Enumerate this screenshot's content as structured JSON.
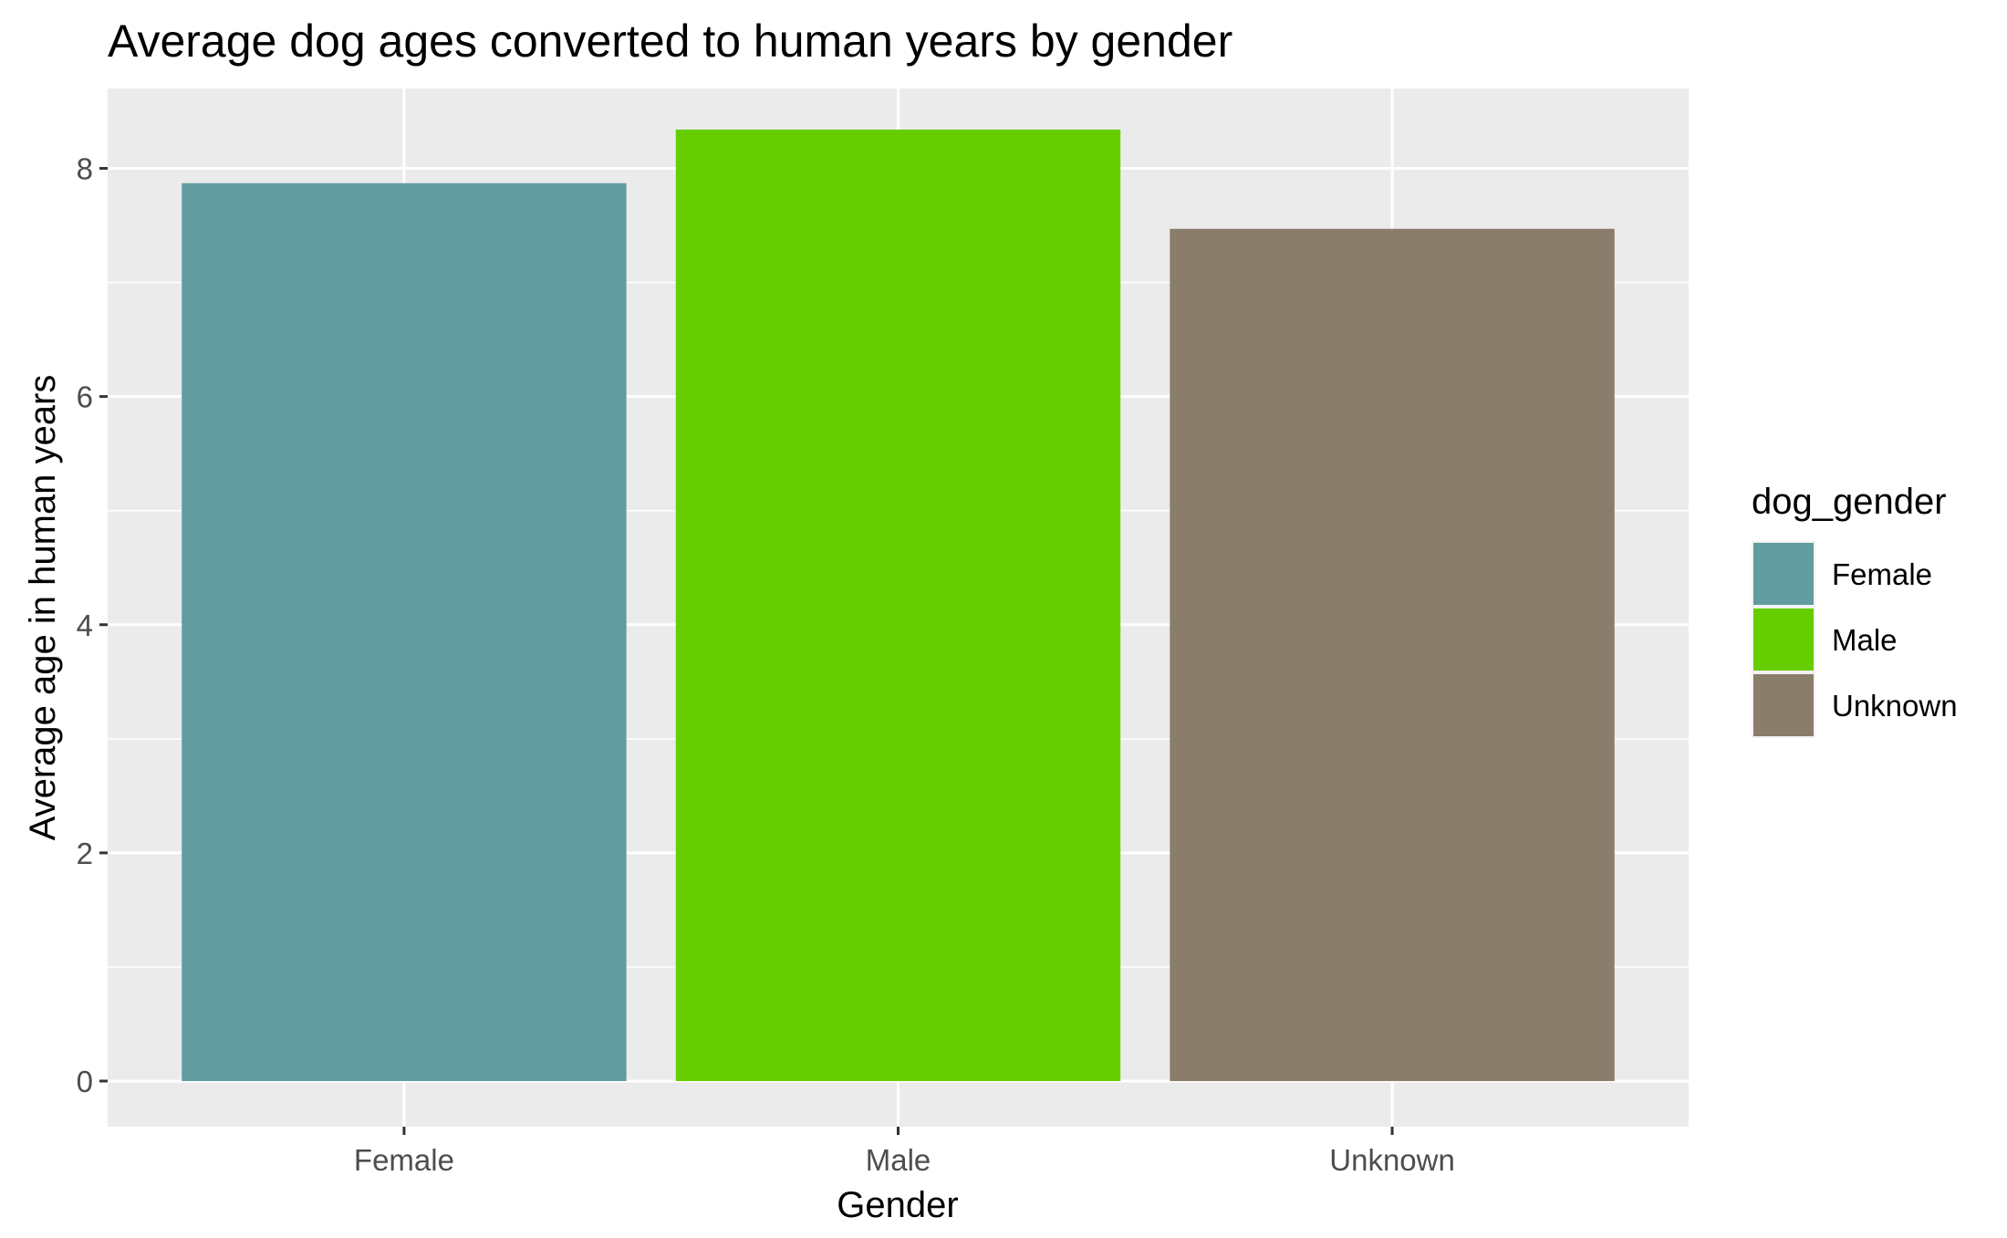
{
  "chart_data": {
    "type": "bar",
    "title": "Average dog ages converted to human years by gender",
    "xlabel": "Gender",
    "ylabel": "Average age in human years",
    "categories": [
      "Female",
      "Male",
      "Unknown"
    ],
    "values": [
      7.87,
      8.34,
      7.47
    ],
    "colors": [
      "#619CA0",
      "#66CD00",
      "#8B7D6B"
    ],
    "ylim": [
      -0.4,
      8.7
    ],
    "yticks": [
      0,
      2,
      4,
      6,
      8
    ],
    "ytick_labels": [
      "0",
      "2",
      "4",
      "6",
      "8"
    ],
    "grid": true,
    "legend": {
      "title": "dog_gender",
      "position": "right",
      "entries": [
        "Female",
        "Male",
        "Unknown"
      ]
    }
  }
}
